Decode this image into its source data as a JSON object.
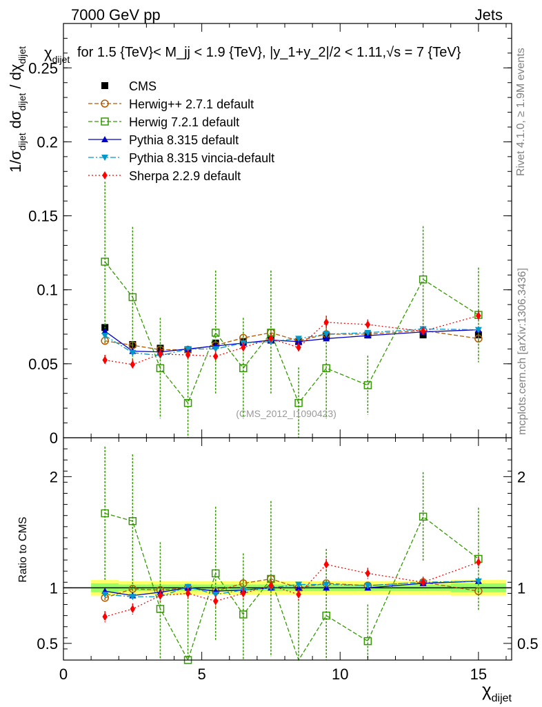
{
  "header": {
    "left": "7000 GeV pp",
    "right": "Jets",
    "title": "for 1.5 {TeV}< M_jj < 1.9 {TeV}, |y_1+y_2|/2 < 1.11,√s = 7 {TeV}"
  },
  "side": {
    "rivet": "Rivet 4.1.0, ≥ 1.9M events",
    "mcplots": "mcplots.cern.ch [arXiv:1306.3436]"
  },
  "watermark": "(CMS_2012_I1090423)",
  "chart_data": [
    {
      "id": "main",
      "type": "scatter",
      "title": "for 1.5 {TeV}< M_jj < 1.9 {TeV}, |y_1+y_2|/2 < 1.11,√s = 7 {TeV}",
      "ylabel": "1/σ_dijet dσ_dijet / dχ_dijet",
      "xlim": [
        0,
        16.2
      ],
      "ylim": [
        0,
        0.28
      ],
      "yticks": [
        0,
        0.05,
        0.1,
        0.15,
        0.2,
        0.25
      ],
      "ytick_labels": [
        "0",
        "0.05",
        "0.1",
        "0.15",
        "0.2",
        "0.25"
      ],
      "x": [
        1.5,
        2.5,
        3.5,
        4.5,
        5.5,
        6.5,
        7.5,
        8.5,
        9.5,
        11.0,
        13.0,
        15.0
      ],
      "legend": {
        "position": "top-left",
        "entries": [
          "CMS",
          "Herwig++ 2.7.1 default",
          "Herwig 7.2.1 default",
          "Pythia 8.315 default",
          "Pythia 8.315 vincia-default",
          "Sherpa 2.2.9 default"
        ]
      },
      "series": [
        {
          "name": "CMS",
          "color": "#000000",
          "marker": "square-filled",
          "line": "none",
          "values": [
            0.0745,
            0.063,
            0.0605,
            0.0595,
            0.064,
            0.065,
            0.066,
            0.065,
            0.0685,
            0.0695,
            0.0695,
            0.0695
          ],
          "errors": [
            0.0015,
            0.0015,
            0.0015,
            0.0015,
            0.0015,
            0.0015,
            0.0015,
            0.0015,
            0.0015,
            0.0015,
            0.0015,
            0.0015
          ]
        },
        {
          "name": "Herwig++ 2.7.1 default",
          "color": "#b35900",
          "marker": "circle-open",
          "line": "dashed",
          "values": [
            0.0655,
            0.0625,
            0.0595,
            0.0595,
            0.0625,
            0.0675,
            0.071,
            0.0655,
            0.07,
            0.07,
            0.0725,
            0.067
          ],
          "errors": [
            0.002,
            0.002,
            0.002,
            0.002,
            0.002,
            0.002,
            0.002,
            0.002,
            0.002,
            0.002,
            0.002,
            0.002
          ]
        },
        {
          "name": "Herwig 7.2.1 default",
          "color": "#339900",
          "marker": "square-open",
          "line": "dashed",
          "values": [
            0.119,
            0.095,
            0.047,
            0.0235,
            0.071,
            0.047,
            0.071,
            0.0235,
            0.047,
            0.0355,
            0.107,
            0.083
          ],
          "errors": [
            0.054,
            0.0475,
            0.034,
            0.033,
            0.042,
            0.034,
            0.042,
            0.024,
            0.034,
            0.02,
            0.036,
            0.032
          ]
        },
        {
          "name": "Pythia 8.315 default",
          "color": "#0000cc",
          "marker": "triangle-up-filled",
          "line": "solid",
          "values": [
            0.072,
            0.0585,
            0.058,
            0.06,
            0.062,
            0.064,
            0.066,
            0.065,
            0.067,
            0.069,
            0.0715,
            0.073
          ],
          "errors": [
            0.0015,
            0.0015,
            0.0015,
            0.0015,
            0.0015,
            0.0015,
            0.0015,
            0.0015,
            0.0015,
            0.0015,
            0.0015,
            0.0015
          ]
        },
        {
          "name": "Pythia 8.315 vincia-default",
          "color": "#0099cc",
          "marker": "triangle-down-filled",
          "line": "dashdot",
          "values": [
            0.069,
            0.0575,
            0.0555,
            0.06,
            0.06,
            0.064,
            0.065,
            0.067,
            0.07,
            0.071,
            0.0735,
            0.073
          ],
          "errors": [
            0.0015,
            0.0015,
            0.0015,
            0.0015,
            0.0015,
            0.0015,
            0.0015,
            0.0015,
            0.0015,
            0.0015,
            0.0015,
            0.0015
          ]
        },
        {
          "name": "Sherpa 2.2.9 default",
          "color": "#ff0000",
          "marker": "diamond-filled",
          "line": "dotted",
          "values": [
            0.0525,
            0.0495,
            0.0565,
            0.056,
            0.055,
            0.061,
            0.067,
            0.061,
            0.078,
            0.0765,
            0.072,
            0.0825
          ],
          "errors": [
            0.0035,
            0.0035,
            0.0035,
            0.0035,
            0.0035,
            0.0035,
            0.0035,
            0.0035,
            0.0045,
            0.0035,
            0.0035,
            0.0035
          ]
        }
      ]
    },
    {
      "id": "ratio",
      "type": "scatter",
      "xlabel": "χ_dijet",
      "ylabel": "Ratio to CMS",
      "xlim": [
        0,
        16.2
      ],
      "ylim": [
        0.35,
        2.35
      ],
      "xticks": [
        0,
        5,
        10,
        15
      ],
      "xtick_labels": [
        "0",
        "5",
        "10",
        "15"
      ],
      "yticks": [
        0.5,
        1,
        2
      ],
      "ytick_labels": [
        "0.5",
        "1",
        "2"
      ],
      "x": [
        1.5,
        2.5,
        3.5,
        4.5,
        5.5,
        6.5,
        7.5,
        8.5,
        9.5,
        11.0,
        13.0,
        15.0
      ],
      "band_edges": [
        1.0,
        2.0,
        3.0,
        4.0,
        5.0,
        6.0,
        7.0,
        8.0,
        9.0,
        10.0,
        12.0,
        14.0,
        16.0
      ],
      "band_inner": [
        0.04,
        0.03,
        0.03,
        0.03,
        0.03,
        0.03,
        0.03,
        0.03,
        0.03,
        0.03,
        0.03,
        0.04
      ],
      "band_outer": [
        0.07,
        0.06,
        0.06,
        0.06,
        0.06,
        0.06,
        0.06,
        0.06,
        0.06,
        0.06,
        0.06,
        0.07
      ],
      "band_colors": {
        "inner": "#99ff66",
        "outer": "#ffff66"
      },
      "series": [
        {
          "name": "Herwig++ 2.7.1 default",
          "values": [
            0.91,
            0.99,
            0.98,
            1.0,
            0.97,
            1.04,
            1.08,
            1.0,
            1.04,
            1.02,
            1.05,
            0.97
          ],
          "errors": [
            0.03,
            0.03,
            0.03,
            0.03,
            0.03,
            0.03,
            0.03,
            0.03,
            0.03,
            0.03,
            0.03,
            0.03
          ]
        },
        {
          "name": "Herwig 7.2.1 default",
          "values": [
            1.67,
            1.6,
            0.81,
            0.35,
            1.13,
            0.76,
            1.08,
            0.3,
            0.75,
            0.52,
            1.64,
            1.26
          ],
          "errors": [
            0.6,
            0.6,
            0.6,
            0.6,
            0.6,
            0.55,
            0.7,
            0.6,
            0.6,
            0.33,
            0.4,
            0.46
          ]
        },
        {
          "name": "Pythia 8.315 default",
          "values": [
            0.97,
            0.93,
            0.96,
            1.0,
            0.97,
            0.98,
            1.0,
            1.0,
            1.0,
            1.0,
            1.04,
            1.06
          ],
          "errors": [
            0.02,
            0.02,
            0.02,
            0.02,
            0.02,
            0.02,
            0.02,
            0.02,
            0.02,
            0.02,
            0.02,
            0.02
          ]
        },
        {
          "name": "Pythia 8.315 vincia-default",
          "values": [
            0.94,
            0.92,
            0.92,
            1.01,
            0.94,
            0.98,
            1.0,
            1.03,
            1.03,
            1.02,
            1.05,
            1.06
          ],
          "errors": [
            0.02,
            0.02,
            0.02,
            0.02,
            0.02,
            0.02,
            0.02,
            0.02,
            0.02,
            0.02,
            0.02,
            0.02
          ]
        },
        {
          "name": "Sherpa 2.2.9 default",
          "values": [
            0.74,
            0.81,
            0.93,
            0.95,
            0.88,
            0.95,
            1.02,
            0.94,
            1.21,
            1.13,
            1.05,
            1.23
          ],
          "errors": [
            0.05,
            0.05,
            0.05,
            0.05,
            0.05,
            0.05,
            0.05,
            0.05,
            0.05,
            0.05,
            0.05,
            0.05
          ]
        }
      ]
    }
  ]
}
